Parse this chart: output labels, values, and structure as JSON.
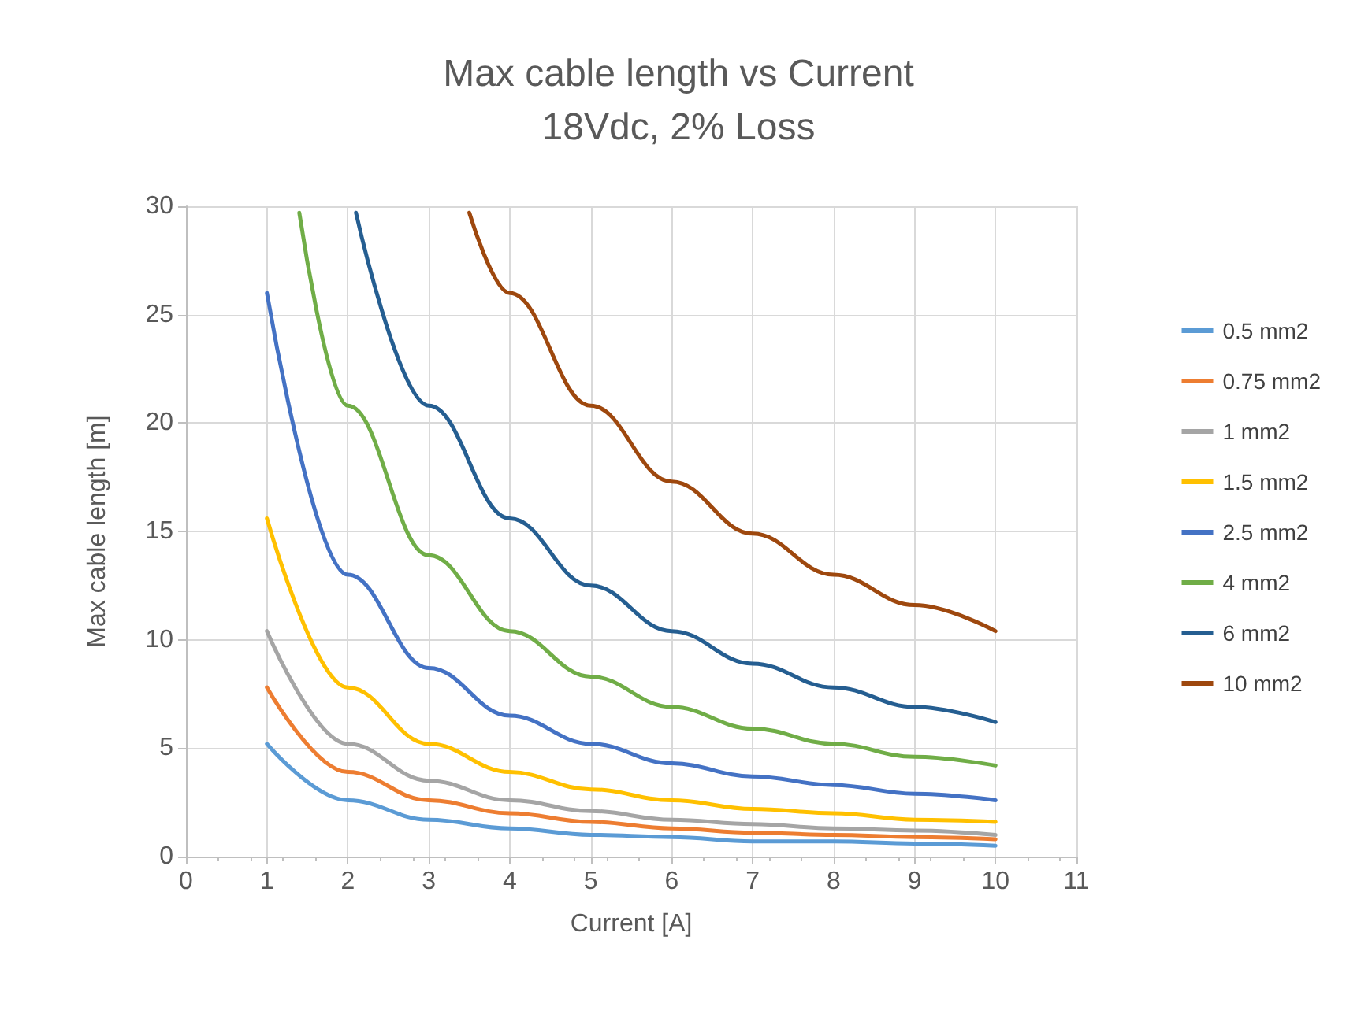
{
  "chart_data": {
    "type": "line",
    "title": "Max cable length vs Current",
    "subtitle": "18Vdc, 2% Loss",
    "xlabel": "Current [A]",
    "ylabel": "Max cable length [m]",
    "x": [
      1,
      2,
      3,
      4,
      5,
      6,
      7,
      8,
      9,
      10
    ],
    "series": [
      {
        "name": "0.5 mm2",
        "color": "#5b9bd5",
        "values": [
          5.2,
          2.6,
          1.7,
          1.3,
          1.0,
          0.9,
          0.7,
          0.7,
          0.6,
          0.5
        ]
      },
      {
        "name": "0.75 mm2",
        "color": "#ed7d31",
        "values": [
          7.8,
          3.9,
          2.6,
          2.0,
          1.6,
          1.3,
          1.1,
          1.0,
          0.9,
          0.8
        ]
      },
      {
        "name": "1 mm2",
        "color": "#a5a5a5",
        "values": [
          10.4,
          5.2,
          3.5,
          2.6,
          2.1,
          1.7,
          1.5,
          1.3,
          1.2,
          1.0
        ]
      },
      {
        "name": "1.5 mm2",
        "color": "#ffc000",
        "values": [
          15.6,
          7.8,
          5.2,
          3.9,
          3.1,
          2.6,
          2.2,
          2.0,
          1.7,
          1.6
        ]
      },
      {
        "name": "2.5 mm2",
        "color": "#4472c4",
        "values": [
          26,
          13,
          8.7,
          6.5,
          5.2,
          4.3,
          3.7,
          3.3,
          2.9,
          2.6
        ]
      },
      {
        "name": "4 mm2",
        "color": "#70ad47",
        "x": [
          1.4,
          2,
          3,
          4,
          5,
          6,
          7,
          8,
          9,
          10
        ],
        "values": [
          29.7,
          20.8,
          13.9,
          10.4,
          8.3,
          6.9,
          5.9,
          5.2,
          4.6,
          4.2
        ]
      },
      {
        "name": "6 mm2",
        "color": "#255e91",
        "x": [
          2.1,
          3,
          4,
          5,
          6,
          7,
          8,
          9,
          10
        ],
        "values": [
          29.7,
          20.8,
          15.6,
          12.5,
          10.4,
          8.9,
          7.8,
          6.9,
          6.2
        ]
      },
      {
        "name": "10 mm2",
        "color": "#9e480e",
        "x": [
          3.5,
          4,
          5,
          6,
          7,
          8,
          9,
          10
        ],
        "values": [
          29.7,
          26,
          20.8,
          17.3,
          14.9,
          13,
          11.6,
          10.4
        ]
      }
    ],
    "xlim": [
      0,
      11
    ],
    "xticks": [
      0,
      1,
      2,
      3,
      4,
      5,
      6,
      7,
      8,
      9,
      10,
      11
    ],
    "ylim": [
      0,
      30
    ],
    "yticks": [
      0,
      5,
      10,
      15,
      20,
      25,
      30
    ],
    "grid": true,
    "legend": "right",
    "marker": "none",
    "line_style": "solid"
  }
}
